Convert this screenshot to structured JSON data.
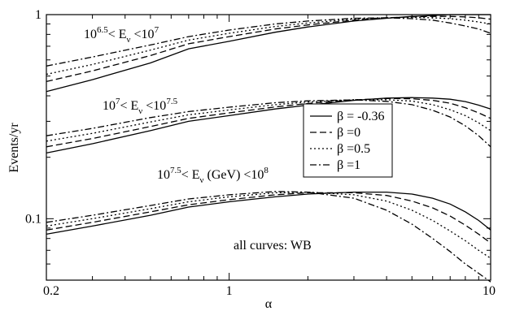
{
  "chart_data": {
    "type": "line",
    "title": "",
    "xlabel": "α",
    "ylabel": "Events/yr",
    "xscale": "log",
    "yscale": "log",
    "xlim": [
      0.2,
      10
    ],
    "ylim": [
      0.05,
      1
    ],
    "grid": false,
    "x_ticks": [
      {
        "value": 0.2,
        "label": "0.2"
      },
      {
        "value": 1,
        "label": "1"
      },
      {
        "value": 10,
        "label": "10"
      }
    ],
    "y_ticks": [
      {
        "value": 0.1,
        "label": "0.1"
      },
      {
        "value": 1,
        "label": "1"
      }
    ],
    "x": [
      0.2,
      0.3,
      0.5,
      0.7,
      1.0,
      1.5,
      2.0,
      3.0,
      4.0,
      5.0,
      6.0,
      7.0,
      8.0,
      9.0,
      10.0
    ],
    "groups": [
      {
        "label": {
          "base": "10",
          "exp1": "6.5",
          "mid": "< E",
          "sub": "ν",
          "tail": " <10",
          "exp2": "7"
        },
        "series": [
          {
            "beta": "-0.36",
            "values": [
              0.42,
              0.48,
              0.58,
              0.68,
              0.74,
              0.82,
              0.87,
              0.93,
              0.96,
              0.98,
              0.99,
              1.0,
              1.0,
              1.0,
              1.0
            ]
          },
          {
            "beta": "0",
            "values": [
              0.47,
              0.53,
              0.63,
              0.72,
              0.78,
              0.85,
              0.89,
              0.94,
              0.965,
              0.975,
              0.98,
              0.98,
              0.975,
              0.965,
              0.95
            ]
          },
          {
            "beta": "0.5",
            "values": [
              0.51,
              0.57,
              0.67,
              0.75,
              0.81,
              0.875,
              0.91,
              0.95,
              0.965,
              0.97,
              0.965,
              0.955,
              0.94,
              0.92,
              0.9
            ]
          },
          {
            "beta": "1",
            "values": [
              0.56,
              0.62,
              0.71,
              0.78,
              0.84,
              0.9,
              0.93,
              0.96,
              0.965,
              0.955,
              0.94,
              0.91,
              0.88,
              0.85,
              0.81
            ]
          }
        ]
      },
      {
        "label": {
          "base": "10",
          "exp1": "7",
          "mid": "< E",
          "sub": "ν",
          "tail": " <10",
          "exp2": "7.5"
        },
        "series": [
          {
            "beta": "-0.36",
            "values": [
              0.21,
              0.233,
              0.27,
              0.3,
              0.32,
              0.345,
              0.36,
              0.38,
              0.39,
              0.392,
              0.39,
              0.385,
              0.375,
              0.36,
              0.345
            ]
          },
          {
            "beta": "0",
            "values": [
              0.225,
              0.247,
              0.283,
              0.31,
              0.33,
              0.353,
              0.367,
              0.382,
              0.388,
              0.387,
              0.38,
              0.368,
              0.35,
              0.33,
              0.31
            ]
          },
          {
            "beta": "0.5",
            "values": [
              0.24,
              0.262,
              0.298,
              0.323,
              0.341,
              0.362,
              0.373,
              0.383,
              0.383,
              0.377,
              0.362,
              0.342,
              0.32,
              0.295,
              0.27
            ]
          },
          {
            "beta": "1",
            "values": [
              0.255,
              0.277,
              0.313,
              0.335,
              0.352,
              0.37,
              0.378,
              0.382,
              0.376,
              0.362,
              0.34,
              0.315,
              0.285,
              0.255,
              0.225
            ]
          }
        ]
      },
      {
        "label": {
          "base": "10",
          "exp1": "7.5",
          "mid": "< E",
          "sub": "ν",
          "tail": " (GeV) <10",
          "exp2": "8"
        },
        "series": [
          {
            "beta": "-0.36",
            "values": [
              0.084,
              0.092,
              0.104,
              0.114,
              0.121,
              0.128,
              0.132,
              0.135,
              0.135,
              0.132,
              0.126,
              0.118,
              0.108,
              0.098,
              0.088
            ]
          },
          {
            "beta": "0",
            "values": [
              0.088,
              0.096,
              0.108,
              0.117,
              0.124,
              0.131,
              0.134,
              0.134,
              0.13,
              0.122,
              0.113,
              0.103,
              0.093,
              0.084,
              0.076
            ]
          },
          {
            "beta": "0.5",
            "values": [
              0.092,
              0.1,
              0.112,
              0.121,
              0.128,
              0.134,
              0.135,
              0.131,
              0.122,
              0.11,
              0.098,
              0.087,
              0.078,
              0.07,
              0.064
            ]
          },
          {
            "beta": "1",
            "values": [
              0.096,
              0.104,
              0.116,
              0.125,
              0.131,
              0.136,
              0.135,
              0.126,
              0.11,
              0.094,
              0.08,
              0.069,
              0.06,
              0.054,
              0.049
            ]
          }
        ]
      }
    ],
    "legend": {
      "placement": "center-right",
      "entries": [
        {
          "label": "β = -0.36",
          "style": "solid"
        },
        {
          "label": "β =0",
          "style": "dashed"
        },
        {
          "label": "β =0.5",
          "style": "dotted"
        },
        {
          "label": "β =1",
          "style": "dashdot"
        }
      ]
    },
    "annotation": "all curves: WB"
  }
}
